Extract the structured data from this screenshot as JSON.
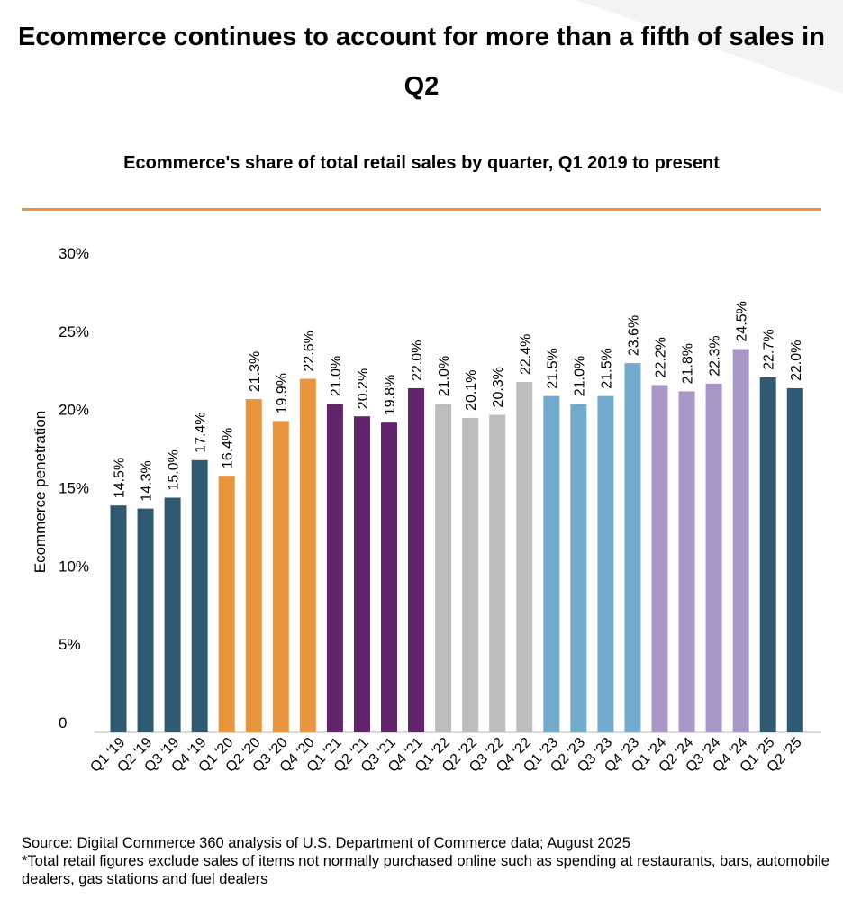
{
  "headline": "Ecommerce continues to account for more than a fifth of sales in Q2",
  "chart_data": {
    "type": "bar",
    "title": "Ecommerce's share of total retail sales by quarter, Q1 2019 to present",
    "xlabel": "",
    "ylabel": "Ecommerce penetration",
    "ylim": [
      0,
      30
    ],
    "yticks": [
      "0",
      "5%",
      "10%",
      "15%",
      "20%",
      "25%",
      "30%"
    ],
    "categories": [
      "Q1 '19",
      "Q2 '19",
      "Q3 '19",
      "Q4 '19",
      "Q1 '20",
      "Q2 '20",
      "Q3 '20",
      "Q4 '20",
      "Q1 '21",
      "Q2 '21",
      "Q3 '21",
      "Q4 '21",
      "Q1 '22",
      "Q2 '22",
      "Q3 '22",
      "Q4 '22",
      "Q1 '23",
      "Q2 '23",
      "Q3 '23",
      "Q4 '23",
      "Q1 '24",
      "Q2 '24",
      "Q3 '24",
      "Q4 '24",
      "Q1 '25",
      "Q2 '25"
    ],
    "values": [
      14.5,
      14.3,
      15.0,
      17.4,
      16.4,
      21.3,
      19.9,
      22.6,
      21.0,
      20.2,
      19.8,
      22.0,
      21.0,
      20.1,
      20.3,
      22.4,
      21.5,
      21.0,
      21.5,
      23.6,
      22.2,
      21.8,
      22.3,
      24.5,
      22.7,
      22.0
    ],
    "labels": [
      "14.5%",
      "14.3%",
      "15.0%",
      "17.4%",
      "16.4%",
      "21.3%",
      "19.9%",
      "22.6%",
      "21.0%",
      "20.2%",
      "19.8%",
      "22.0%",
      "21.0%",
      "20.1%",
      "20.3%",
      "22.4%",
      "21.5%",
      "21.0%",
      "21.5%",
      "23.6%",
      "22.2%",
      "21.8%",
      "22.3%",
      "24.5%",
      "22.7%",
      "22.0%"
    ],
    "year_colors": {
      "2019": "#2f5a72",
      "2020": "#e8953e",
      "2021": "#62246a",
      "2022": "#bdbdbd",
      "2023": "#72aacb",
      "2024": "#a896c6",
      "2025": "#2f5a72"
    },
    "grid": false
  },
  "footer": {
    "source": "Source: Digital Commerce 360 analysis of U.S. Department of Commerce data; August 2025",
    "note": "*Total retail figures exclude sales of items not normally purchased online such as spending at restaurants, bars, automobile dealers, gas stations and fuel dealers"
  }
}
